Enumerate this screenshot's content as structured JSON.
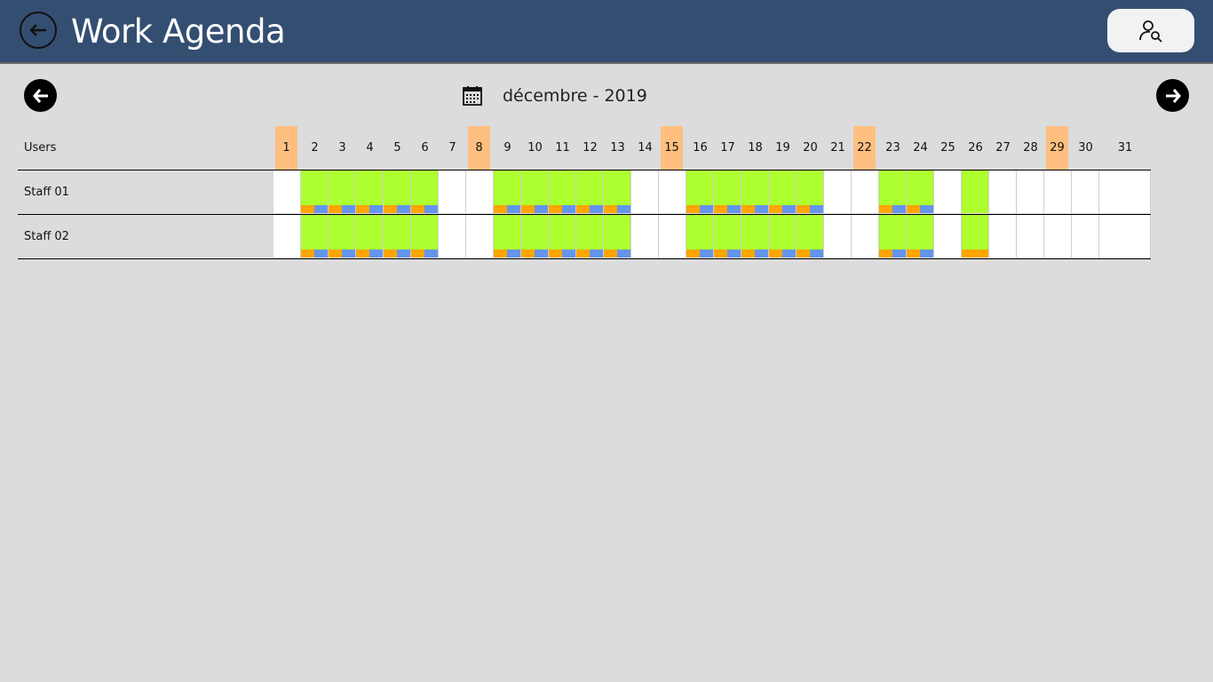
{
  "header": {
    "title": "Work Agenda",
    "back_icon": "arrow-left-circle-icon",
    "user_icon": "user-search-icon"
  },
  "nav": {
    "prev_icon": "arrow-left-icon",
    "next_icon": "arrow-right-icon",
    "calendar_icon": "calendar-icon",
    "month_label": "décembre - 2019"
  },
  "grid": {
    "users_header": "Users",
    "days": [
      "1",
      "2",
      "3",
      "4",
      "5",
      "6",
      "7",
      "8",
      "9",
      "10",
      "11",
      "12",
      "13",
      "14",
      "15",
      "16",
      "17",
      "18",
      "19",
      "20",
      "21",
      "22",
      "23",
      "24",
      "25",
      "26",
      "27",
      "28",
      "29",
      "30",
      "31"
    ],
    "sundays": [
      1,
      8,
      15,
      22,
      29
    ],
    "rows": [
      {
        "name": "Staff 01",
        "shifts": {
          "2": "split",
          "3": "split",
          "4": "split",
          "5": "split",
          "6": "split",
          "9": "split",
          "10": "split",
          "11": "split",
          "12": "split",
          "13": "split",
          "16": "split",
          "17": "split",
          "18": "split",
          "19": "split",
          "20": "split",
          "23": "split",
          "24": "split",
          "26": "plain"
        }
      },
      {
        "name": "Staff 02",
        "shifts": {
          "2": "split",
          "3": "split",
          "4": "split",
          "5": "split",
          "6": "split",
          "9": "split",
          "10": "split",
          "11": "split",
          "12": "split",
          "13": "split",
          "16": "split",
          "17": "split",
          "18": "split",
          "19": "split",
          "20": "split",
          "23": "split",
          "24": "split",
          "26": "orange"
        }
      }
    ]
  },
  "colors": {
    "header_bg": "#344e72",
    "page_bg": "#dcdcdc",
    "sunday": "#ffbf80",
    "work_day": "#adff2f",
    "bar_orange": "#ffa500",
    "bar_blue": "#6495ed"
  }
}
